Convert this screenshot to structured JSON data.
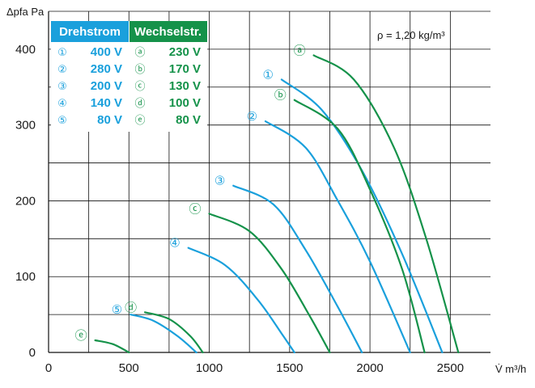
{
  "chart_data": {
    "type": "line",
    "xlabel": "V̇ m³/h",
    "ylabel": "Δpfa Pa",
    "xlim": [
      0,
      2750
    ],
    "ylim": [
      0,
      450
    ],
    "x_ticks": [
      0,
      500,
      1000,
      1500,
      2000,
      2500
    ],
    "y_ticks": [
      0,
      100,
      200,
      300,
      400
    ],
    "grid": true,
    "annotation": "ρ = 1,20 kg/m³",
    "legend": {
      "placement": "top-left",
      "headers": [
        "Drehstrom",
        "Wechselstr."
      ],
      "rows": [
        {
          "drehstrom_marker": "①",
          "drehstrom_value": "400 V",
          "wechsel_marker": "ⓐ",
          "wechsel_value": "230 V"
        },
        {
          "drehstrom_marker": "②",
          "drehstrom_value": "280 V",
          "wechsel_marker": "ⓑ",
          "wechsel_value": "170 V"
        },
        {
          "drehstrom_marker": "③",
          "drehstrom_value": "200 V",
          "wechsel_marker": "ⓒ",
          "wechsel_value": "130 V"
        },
        {
          "drehstrom_marker": "④",
          "drehstrom_value": "140 V",
          "wechsel_marker": "ⓓ",
          "wechsel_value": "100 V"
        },
        {
          "drehstrom_marker": "⑤",
          "drehstrom_value": "80 V",
          "wechsel_marker": "ⓔ",
          "wechsel_value": "80 V"
        }
      ]
    },
    "series": [
      {
        "marker": "①",
        "group": "Drehstrom",
        "x": [
          1450,
          1700,
          1950,
          2200,
          2450
        ],
        "y": [
          360,
          320,
          240,
          130,
          0
        ]
      },
      {
        "marker": "②",
        "group": "Drehstrom",
        "x": [
          1350,
          1600,
          1800,
          2000,
          2250
        ],
        "y": [
          305,
          270,
          200,
          120,
          0
        ]
      },
      {
        "marker": "③",
        "group": "Drehstrom",
        "x": [
          1150,
          1400,
          1600,
          1800,
          1950
        ],
        "y": [
          220,
          195,
          135,
          60,
          0
        ]
      },
      {
        "marker": "④",
        "group": "Drehstrom",
        "x": [
          870,
          1100,
          1300,
          1450,
          1530
        ],
        "y": [
          138,
          115,
          70,
          25,
          0
        ]
      },
      {
        "marker": "⑤",
        "group": "Drehstrom",
        "x": [
          510,
          650,
          800,
          920
        ],
        "y": [
          50,
          42,
          22,
          0
        ]
      },
      {
        "marker": "ⓐ",
        "group": "Wechselstr.",
        "x": [
          1650,
          1900,
          2150,
          2350,
          2550
        ],
        "y": [
          392,
          360,
          270,
          150,
          0
        ]
      },
      {
        "marker": "ⓑ",
        "group": "Wechselstr.",
        "x": [
          1530,
          1800,
          2000,
          2200,
          2340
        ],
        "y": [
          333,
          295,
          215,
          110,
          0
        ]
      },
      {
        "marker": "ⓒ",
        "group": "Wechselstr.",
        "x": [
          1000,
          1250,
          1450,
          1620,
          1750
        ],
        "y": [
          183,
          160,
          110,
          50,
          0
        ]
      },
      {
        "marker": "ⓓ",
        "group": "Wechselstr.",
        "x": [
          600,
          750,
          880,
          960
        ],
        "y": [
          53,
          44,
          22,
          0
        ]
      },
      {
        "marker": "ⓔ",
        "group": "Wechselstr.",
        "x": [
          290,
          400,
          500
        ],
        "y": [
          16,
          11,
          0
        ]
      }
    ]
  },
  "colors": {
    "drehstrom": "#1aa0dc",
    "wechselstrom": "#15924a",
    "grid": "#111111",
    "text": "#1a1a1a"
  }
}
